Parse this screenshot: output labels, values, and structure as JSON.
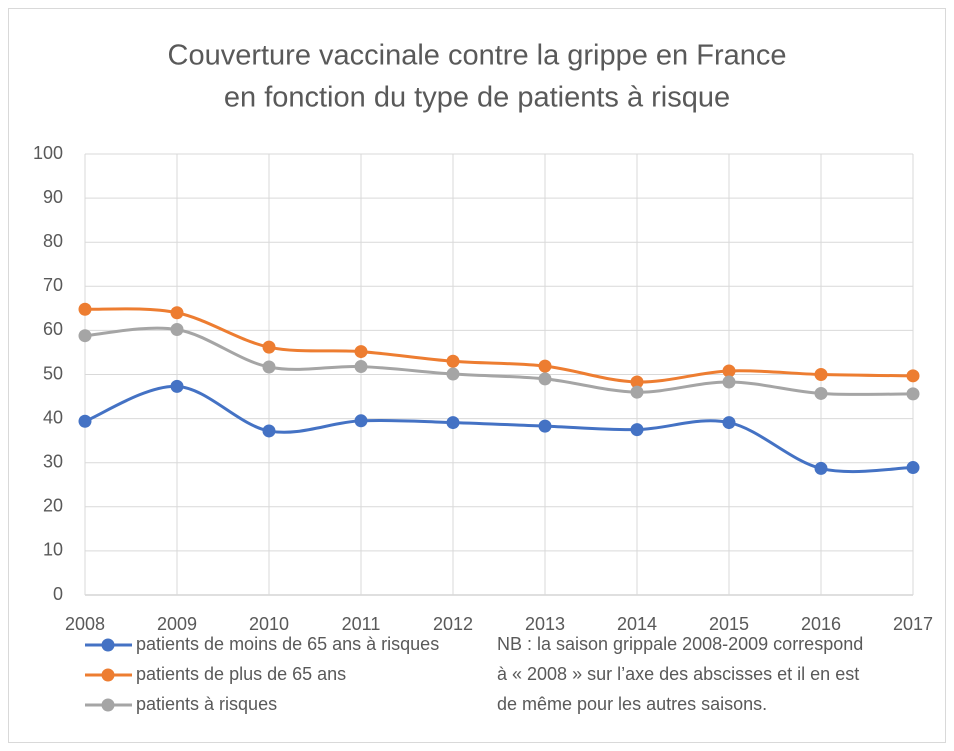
{
  "chart_data": {
    "type": "line",
    "title": [
      "Couverture vaccinale contre la grippe en France",
      "en fonction du type de patients à risque"
    ],
    "x": [
      2008,
      2009,
      2010,
      2011,
      2012,
      2013,
      2014,
      2015,
      2016,
      2017
    ],
    "series": [
      {
        "name": "patients de moins de 65 ans à risques",
        "color": "#4472c4",
        "values": [
          39.4,
          47.3,
          37.2,
          39.5,
          39.1,
          38.3,
          37.5,
          39.1,
          28.7,
          28.9
        ]
      },
      {
        "name": "patients de plus de 65 ans",
        "color": "#ed7d31",
        "values": [
          64.8,
          64.0,
          56.2,
          55.2,
          53.0,
          51.9,
          48.3,
          50.8,
          50.0,
          49.7
        ]
      },
      {
        "name": "patients à risques",
        "color": "#a5a5a5",
        "values": [
          58.8,
          60.2,
          51.7,
          51.8,
          50.1,
          49.0,
          46.0,
          48.3,
          45.7,
          45.6
        ]
      }
    ],
    "xlim": [
      2008,
      2017
    ],
    "xticks": [
      2008,
      2009,
      2010,
      2011,
      2012,
      2013,
      2014,
      2015,
      2016,
      2017
    ],
    "ylim": [
      0,
      100
    ],
    "yticks": [
      0,
      10,
      20,
      30,
      40,
      50,
      60,
      70,
      80,
      90,
      100
    ],
    "grid": true,
    "legend": "bottom-left",
    "note": [
      "NB : la saison grippale 2008-2009 correspond",
      "à « 2008 » sur l’axe des abscisses et il en est",
      "de même pour les autres saisons."
    ]
  }
}
